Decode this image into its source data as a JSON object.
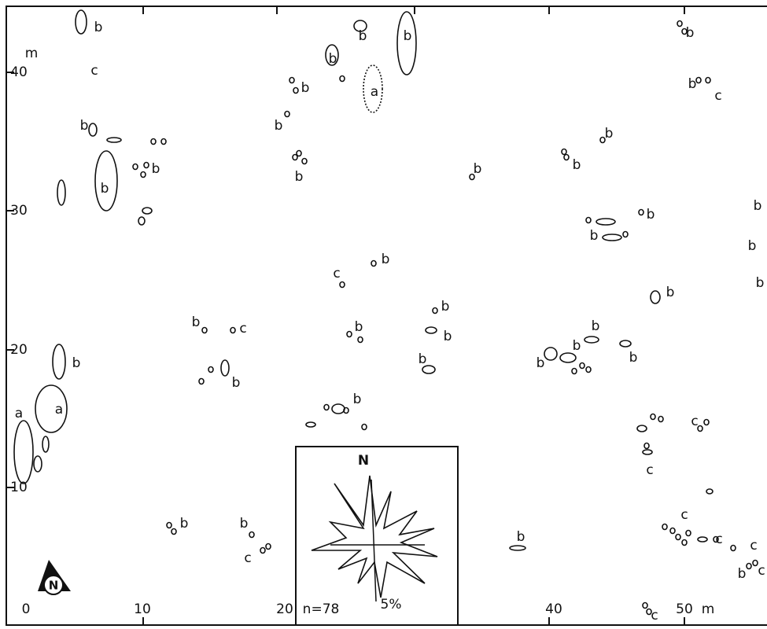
{
  "axes": {
    "y_unit": "m",
    "y_labels": [
      "40",
      "30",
      "20",
      "10"
    ],
    "x_labels": [
      "0",
      "10",
      "20",
      "40",
      "50"
    ],
    "x_unit": "m"
  },
  "site_labels": [
    "b",
    "c",
    "b",
    "b",
    "b",
    "b",
    "b",
    "a",
    "b",
    "b",
    "b",
    "b",
    "b",
    "c",
    "b",
    "b",
    "b",
    "b",
    "b",
    "b",
    "b",
    "b",
    "b",
    "b",
    "c",
    "b",
    "b",
    "b",
    "c",
    "b",
    "b",
    "b",
    "b",
    "b",
    "b",
    "b",
    "b",
    "b",
    "a",
    "a",
    "b",
    "c",
    "c",
    "b",
    "b",
    "c",
    "c",
    "c",
    "b",
    "c",
    "b",
    "c",
    "c"
  ],
  "inset": {
    "north": "N",
    "count": "n=78",
    "scale": "5%"
  },
  "compass": "N"
}
